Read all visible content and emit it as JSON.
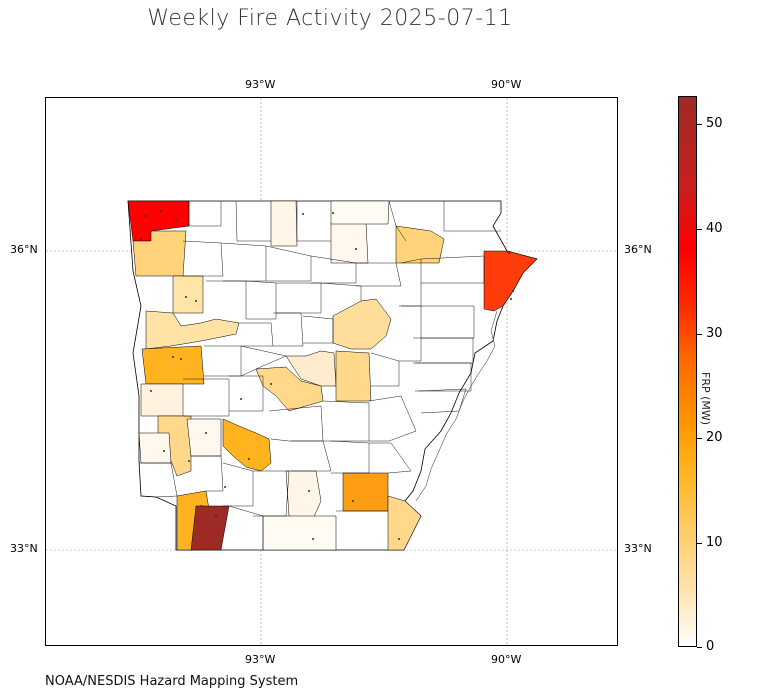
{
  "title": "Weekly Fire Activity 2025-07-11",
  "source": "NOAA/NESDIS Hazard Mapping System",
  "lon_ticks": [
    "93°W",
    "90°W"
  ],
  "lat_ticks": [
    "36°N",
    "33°N"
  ],
  "colorbar": {
    "label": "FRP (MW)",
    "ticks": [
      "0",
      "10",
      "20",
      "30",
      "40",
      "50"
    ],
    "range": [
      0,
      52.5
    ],
    "colors": [
      "#ffffff",
      "#ffd37a",
      "#ff9800",
      "#ff2a00",
      "#ff0000",
      "#9e2a26"
    ]
  },
  "map": {
    "region": "Arkansas counties",
    "extent": {
      "lon": [
        -95.6,
        -88.6
      ],
      "lat": [
        31.0,
        37.6
      ]
    }
  }
}
